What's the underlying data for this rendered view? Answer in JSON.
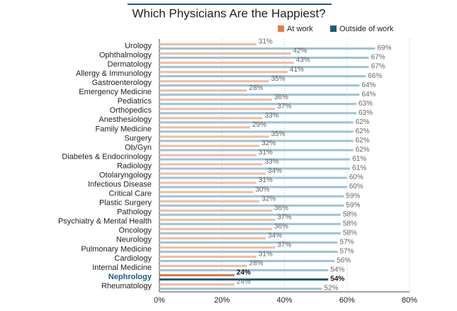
{
  "chart_data": {
    "type": "hbar",
    "title": "Which Physicians Are the Happiest?",
    "categories": [
      "Urology",
      "Ophthalmology",
      "Dermatology",
      "Allergy & Immunology",
      "Gastroenterology",
      "Emergency Medicine",
      "Pediatrics",
      "Orthopedics",
      "Anesthesiology",
      "Family Medicine",
      "Surgery",
      "Ob/Gyn",
      "Diabetes & Endocrinology",
      "Radiology",
      "Otolaryngology",
      "Infectious Disease",
      "Critical Care",
      "Plastic Surgery",
      "Pathology",
      "Psychiatry & Mental Health",
      "Oncology",
      "Neurology",
      "Pulmonary Medicine",
      "Cardiology",
      "Internal Medicine",
      "Nephrology",
      "Rheumatology"
    ],
    "series": [
      {
        "name": "At work",
        "color": "#e07b45",
        "light_color": "#f2bc9f",
        "values": [
          31,
          42,
          43,
          41,
          35,
          28,
          36,
          37,
          33,
          29,
          35,
          32,
          31,
          33,
          34,
          31,
          30,
          32,
          36,
          37,
          36,
          34,
          37,
          31,
          28,
          24,
          24
        ],
        "value_labels": [
          "31%",
          "42%",
          "43%",
          "41%",
          "35%",
          "28%",
          "36%",
          "37%",
          "33%",
          "29%",
          "35%",
          "32%",
          "31%",
          "33%",
          "34%",
          "31%",
          "30%",
          "32%",
          "36%",
          "37%",
          "36%",
          "34%",
          "37%",
          "31%",
          "28%",
          "24%",
          "24%"
        ]
      },
      {
        "name": "Outside of work",
        "color": "#1c5d7a",
        "light_color": "#9cc3d6",
        "values": [
          69,
          67,
          67,
          66,
          64,
          64,
          63,
          63,
          62,
          62,
          62,
          62,
          61,
          61,
          60,
          60,
          59,
          59,
          58,
          58,
          58,
          57,
          57,
          56,
          54,
          54,
          52
        ],
        "value_labels": [
          "69%",
          "67%",
          "67%",
          "66%",
          "64%",
          "64%",
          "63%",
          "63%",
          "62%",
          "62%",
          "62%",
          "62%",
          "61%",
          "61%",
          "60%",
          "60%",
          "59%",
          "59%",
          "58%",
          "58%",
          "58%",
          "57%",
          "57%",
          "56%",
          "54%",
          "54%",
          "52%"
        ]
      }
    ],
    "highlight_index": 25,
    "xlim": [
      0,
      80
    ],
    "xticks": [
      {
        "value": 0,
        "label": "0%"
      },
      {
        "value": 20,
        "label": "20%"
      },
      {
        "value": 40,
        "label": "40%"
      },
      {
        "value": 60,
        "label": "60%"
      },
      {
        "value": 80,
        "label": "80%"
      }
    ],
    "grid": true
  }
}
